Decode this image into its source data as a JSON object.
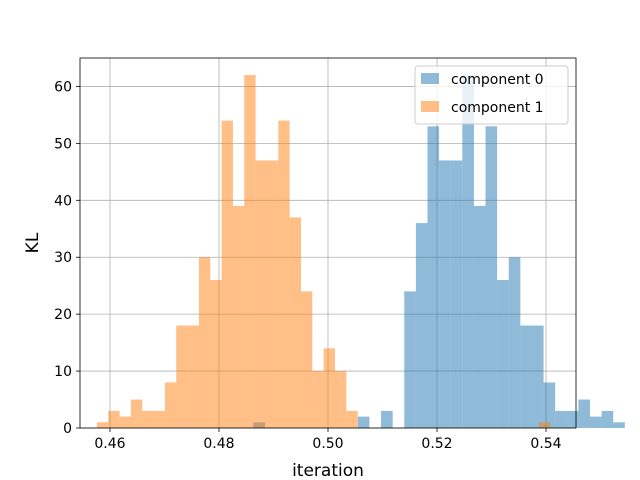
{
  "chart_data": {
    "type": "histogram",
    "title": "",
    "xlabel": "iteration",
    "ylabel": "KL",
    "xlim": [
      0.4545,
      0.5455
    ],
    "ylim": [
      0,
      65
    ],
    "xticks": [
      0.46,
      0.48,
      0.5,
      0.52,
      0.54
    ],
    "xtick_labels": [
      "0.46",
      "0.48",
      "0.50",
      "0.52",
      "0.54"
    ],
    "yticks": [
      0,
      10,
      20,
      30,
      40,
      50,
      60
    ],
    "ytick_labels": [
      "0",
      "10",
      "20",
      "30",
      "40",
      "50",
      "60"
    ],
    "grid": true,
    "legend_position": "top-right",
    "series": [
      {
        "name": "component 0",
        "color": "#1f77b4",
        "alpha": 0.5,
        "bin_start": 0.4863,
        "bin_width": 0.00213,
        "counts": [
          1,
          0,
          0,
          0,
          0,
          0,
          0,
          0,
          0,
          2,
          0,
          3,
          0,
          24,
          36,
          53,
          47,
          47,
          62,
          39,
          53,
          26,
          30,
          18,
          18,
          8,
          3,
          3,
          5,
          2,
          3,
          1
        ]
      },
      {
        "name": "component 1",
        "color": "#ff7f0e",
        "alpha": 0.5,
        "bin_start": 0.4576,
        "bin_width": 0.00208,
        "counts": [
          1,
          3,
          2,
          5,
          3,
          3,
          8,
          18,
          18,
          30,
          26,
          54,
          39,
          62,
          47,
          47,
          54,
          37,
          24,
          10,
          14,
          10,
          3,
          0,
          0,
          0,
          0,
          0,
          0,
          0,
          0,
          0,
          0,
          0,
          0,
          0,
          0,
          0,
          0,
          1
        ]
      }
    ]
  }
}
